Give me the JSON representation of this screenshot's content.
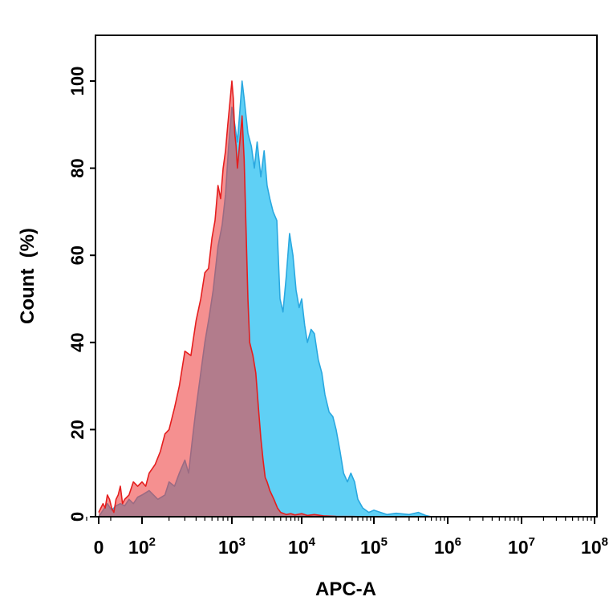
{
  "chart_data": {
    "type": "area",
    "title": "",
    "xlabel": "APC-A",
    "ylabel": "Count  (%)",
    "x_scale": "biexponential",
    "xlim": [
      0,
      100000000
    ],
    "ylim": [
      0,
      100
    ],
    "grid": false,
    "x_ticks": [
      {
        "value": 0,
        "base": "0",
        "exp": ""
      },
      {
        "value": 100,
        "base": "10",
        "exp": "2"
      },
      {
        "value": 1000,
        "base": "10",
        "exp": "3"
      },
      {
        "value": 10000,
        "base": "10",
        "exp": "4"
      },
      {
        "value": 100000,
        "base": "10",
        "exp": "5"
      },
      {
        "value": 1000000,
        "base": "10",
        "exp": "6"
      },
      {
        "value": 10000000,
        "base": "10",
        "exp": "7"
      },
      {
        "value": 100000000,
        "base": "10",
        "exp": "8"
      }
    ],
    "y_ticks": [
      0,
      20,
      40,
      60,
      80,
      100
    ],
    "series": [
      {
        "color": "#5fd0f5",
        "edge_color": "#2aa8e0",
        "x": [
          0,
          10,
          20,
          30,
          40,
          50,
          60,
          70,
          80,
          90,
          100,
          120,
          150,
          180,
          200,
          230,
          260,
          300,
          330,
          360,
          400,
          450,
          500,
          560,
          620,
          700,
          780,
          850,
          920,
          1000,
          1100,
          1200,
          1300,
          1400,
          1500,
          1700,
          1900,
          2100,
          2300,
          2600,
          2900,
          3200,
          3500,
          3900,
          4400,
          4900,
          5400,
          6000,
          6700,
          7500,
          8300,
          9200,
          10000,
          11000,
          12000,
          13500,
          15000,
          17000,
          19000,
          21000,
          24000,
          27000,
          30000,
          34000,
          38000,
          43000,
          48000,
          54000,
          60000,
          70000,
          85000,
          100000,
          150000,
          200000,
          300000,
          400000,
          500000,
          600000
        ],
        "y": [
          0,
          1.5,
          3,
          1.5,
          2.5,
          3,
          2.5,
          4,
          3,
          4.5,
          5,
          6,
          4,
          5,
          8,
          7,
          10,
          13,
          10,
          17,
          25,
          33,
          40,
          46,
          52,
          62,
          67,
          74,
          85,
          94,
          90,
          86,
          93,
          100,
          96,
          88,
          85,
          80,
          86,
          78,
          84,
          76,
          73,
          70,
          68,
          50,
          47,
          55,
          65,
          60,
          52,
          48,
          50,
          44,
          40,
          43,
          42,
          36,
          33,
          28,
          24,
          23,
          20,
          15,
          10,
          8,
          10,
          8,
          4,
          2,
          1,
          1.5,
          0.5,
          0.8,
          0.5,
          1,
          0.3,
          0
        ],
        "opacity": 1.0
      },
      {
        "color": "#ee3f3f",
        "edge_color": "#e51e1e",
        "x": [
          0,
          5,
          10,
          15,
          20,
          25,
          30,
          35,
          40,
          45,
          50,
          55,
          60,
          70,
          80,
          90,
          100,
          110,
          120,
          140,
          160,
          180,
          200,
          230,
          260,
          300,
          350,
          400,
          450,
          500,
          550,
          600,
          650,
          700,
          750,
          800,
          850,
          900,
          950,
          1000,
          1050,
          1100,
          1150,
          1200,
          1300,
          1400,
          1500,
          1600,
          1700,
          1800,
          2000,
          2200,
          2400,
          2600,
          2800,
          3000,
          3200,
          3500,
          4000,
          4500,
          5000,
          6000,
          7000,
          8000,
          10000,
          12000,
          15000,
          20000,
          30000,
          50000,
          80000,
          100000
        ],
        "y": [
          1,
          2,
          3,
          2,
          5,
          4,
          2,
          1,
          4,
          5,
          7,
          3,
          4,
          5,
          8,
          7,
          8,
          7,
          10,
          12,
          15,
          19,
          20,
          25,
          30,
          38,
          37,
          45,
          50,
          56,
          57,
          64,
          68,
          76,
          73,
          80,
          84,
          90,
          95,
          100,
          96,
          88,
          85,
          80,
          86,
          92,
          82,
          65,
          50,
          40,
          37,
          33,
          25,
          18,
          13,
          9,
          8,
          6,
          4,
          2,
          1,
          0.5,
          0.7,
          0.4,
          0.7,
          0.3,
          0.5,
          0.2,
          0.1,
          0.05,
          0,
          0
        ],
        "opacity": 0.58
      }
    ]
  }
}
